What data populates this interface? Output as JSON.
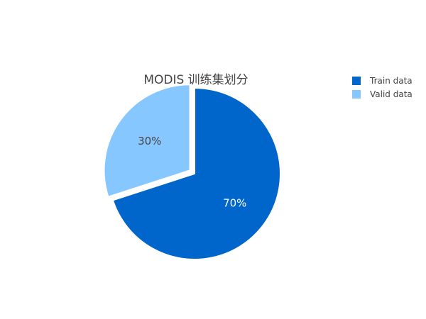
{
  "chart_data": {
    "type": "pie",
    "title": "MODIS 训练集划分",
    "categories": [
      "Train data",
      "Valid data"
    ],
    "values": [
      70,
      30
    ],
    "labels": [
      "70%",
      "30%"
    ],
    "colors": [
      "#0066cc",
      "#87c7ff"
    ],
    "label_colors": [
      "#ffffff",
      "#444444"
    ],
    "legend": {
      "placement": "top-right",
      "entries": [
        "Train data",
        "Valid data"
      ]
    },
    "pulled_slice": "Valid data"
  }
}
